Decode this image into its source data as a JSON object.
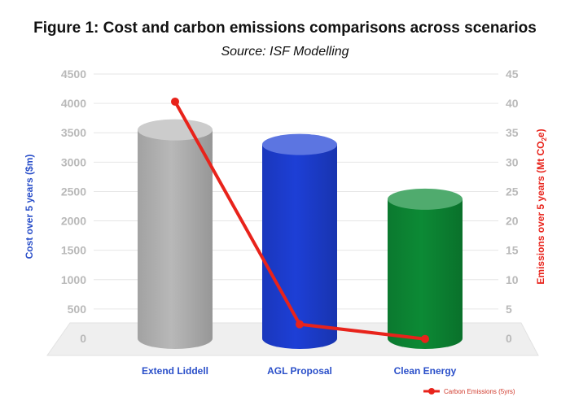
{
  "chart_data": {
    "type": "bar",
    "title": "Figure 1: Cost and carbon emissions comparisons across scenarios",
    "subtitle": "Source: ISF Modelling",
    "categories": [
      "Extend Liddell",
      "AGL Proposal",
      "Clean Energy"
    ],
    "series": [
      {
        "axis": "left",
        "style": "cylinder",
        "values": [
          3550,
          3300,
          2370
        ],
        "colors": [
          "#b8b8b8",
          "#1d3fd6",
          "#0c8a35"
        ]
      },
      {
        "name": "Carbon Emissions (5yrs)",
        "axis": "right",
        "style": "line",
        "values": [
          40.3,
          2.4,
          -0.1
        ],
        "color": "#e8231b"
      }
    ],
    "ylabel": "Cost over 5 years ($m)",
    "ylabel_color": "#2a4fc9",
    "ylim": [
      0,
      4500
    ],
    "yticks": [
      "4500",
      "4000",
      "3500",
      "3000",
      "2500",
      "2000",
      "1500",
      "1000",
      "500",
      "0"
    ],
    "y2label": "Emissions over 5 years (Mt CO",
    "y2label_sub": "2",
    "y2label_end": "e)",
    "y2label_color": "#e8231b",
    "y2lim": [
      0,
      45
    ],
    "y2ticks": [
      "45",
      "40",
      "35",
      "30",
      "25",
      "20",
      "15",
      "10",
      "5",
      "0"
    ],
    "grid": true,
    "legend_position": "bottom-right"
  }
}
